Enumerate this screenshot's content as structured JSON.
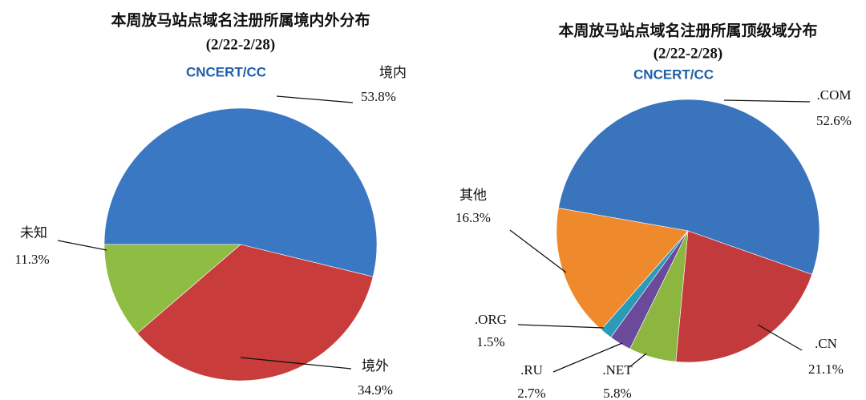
{
  "chart_data": [
    {
      "type": "pie",
      "title": "本周放马站点域名注册所属境内外分布",
      "subtitle": "(2/22-2/28)",
      "logo": "CNCERT/CC",
      "categories": [
        "境内",
        "境外",
        "未知"
      ],
      "values": [
        53.8,
        34.9,
        11.3
      ],
      "value_labels": [
        "53.8%",
        "34.9%",
        "11.3%"
      ],
      "colors": [
        "#3b78c3",
        "#c93c3c",
        "#8fbc42"
      ]
    },
    {
      "type": "pie",
      "title": "本周放马站点域名注册所属顶级域分布",
      "subtitle": "(2/22-2/28)",
      "logo": "CNCERT/CC",
      "categories": [
        ".COM",
        ".CN",
        ".NET",
        ".RU",
        ".ORG",
        "其他"
      ],
      "values": [
        52.6,
        21.1,
        5.8,
        2.7,
        1.5,
        16.3
      ],
      "value_labels": [
        "52.6%",
        "21.1%",
        "5.8%",
        "2.7%",
        "1.5%",
        "16.3%"
      ],
      "colors": [
        "#3a74bd",
        "#c23a3c",
        "#8db640",
        "#6c4a9b",
        "#2b9bb8",
        "#ee8a2c"
      ]
    }
  ]
}
